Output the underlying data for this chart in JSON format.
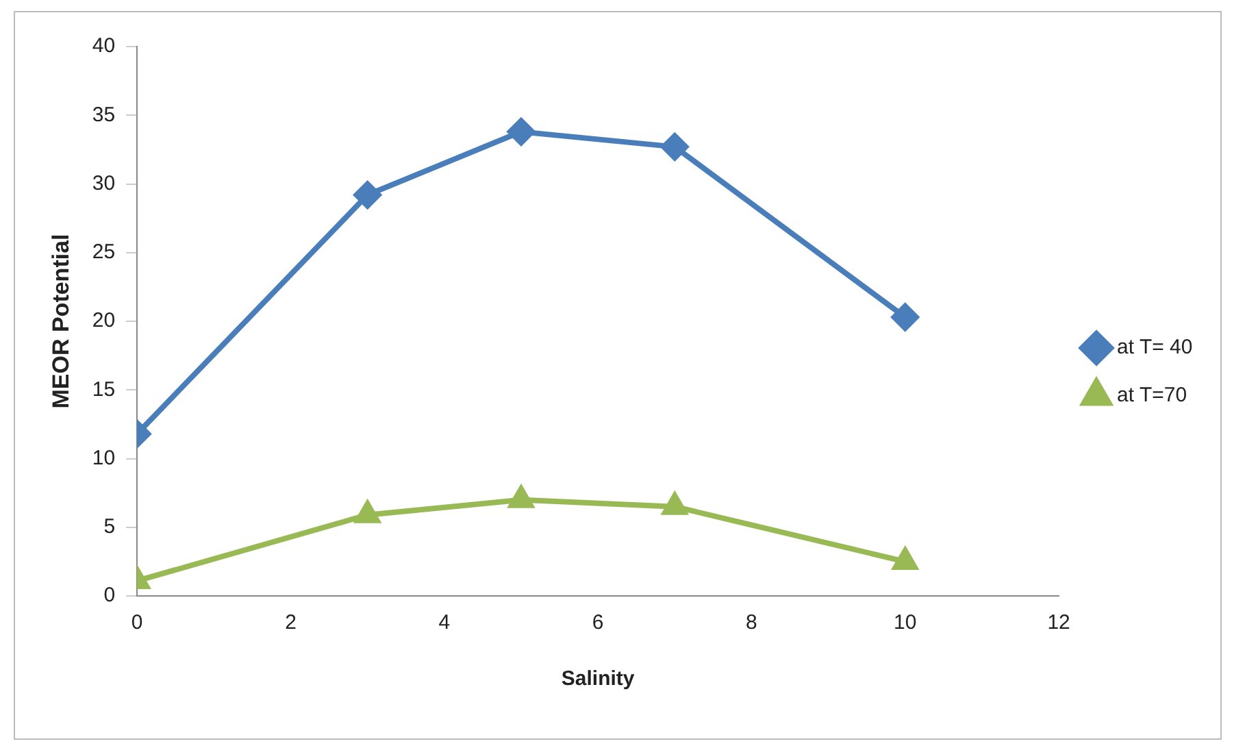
{
  "chart_data": {
    "type": "line",
    "xlabel": "Salinity",
    "ylabel": "MEOR Potential",
    "x": [
      0,
      3,
      5,
      7,
      10
    ],
    "series": [
      {
        "name": "at T= 40",
        "color": "#4a7ebb",
        "marker": "diamond",
        "values": [
          11.8,
          29.2,
          33.8,
          32.7,
          20.3
        ]
      },
      {
        "name": "at T=70",
        "color": "#98b954",
        "marker": "triangle",
        "values": [
          1.1,
          5.9,
          7.0,
          6.5,
          2.5
        ]
      }
    ],
    "xlim": [
      0,
      12
    ],
    "xticks": [
      0,
      2,
      4,
      6,
      8,
      10,
      12
    ],
    "ylim": [
      0,
      40
    ],
    "yticks": [
      0,
      5,
      10,
      15,
      20,
      25,
      30,
      35,
      40
    ],
    "grid": false,
    "legend": "right",
    "line_style": "solid"
  }
}
